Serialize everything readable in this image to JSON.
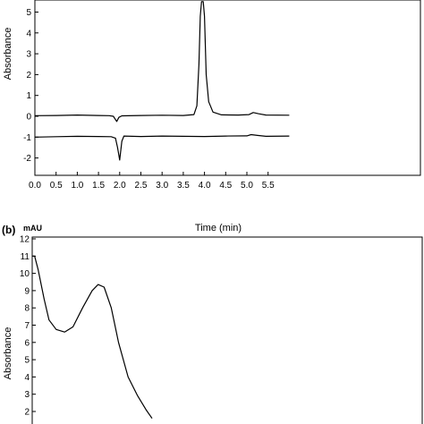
{
  "chart_data": [
    {
      "panel": "",
      "type": "line",
      "xlabel": "Time (min)",
      "ylabel": "Absorbance",
      "xlim": [
        0.0,
        6.0
      ],
      "ylim": [
        -3,
        5.5
      ],
      "x_ticks": [
        "0.0",
        "0.5",
        "1.0",
        "1.5",
        "2.0",
        "2.5",
        "3.0",
        "3.5",
        "4.0",
        "4.5",
        "5.0",
        "5.5"
      ],
      "y_ticks": [
        "-2",
        "-1",
        "0",
        "1",
        "2",
        "3",
        "4",
        "5"
      ],
      "series": [
        {
          "name": "",
          "points": [
            [
              0.0,
              0.03
            ],
            [
              0.5,
              0.04
            ],
            [
              1.0,
              0.06
            ],
            [
              1.5,
              0.04
            ],
            [
              1.75,
              0.03
            ],
            [
              1.85,
              0.0
            ],
            [
              1.93,
              -0.25
            ],
            [
              1.98,
              -0.05
            ],
            [
              2.05,
              0.02
            ],
            [
              2.5,
              0.04
            ],
            [
              3.0,
              0.05
            ],
            [
              3.5,
              0.04
            ],
            [
              3.75,
              0.08
            ],
            [
              3.82,
              0.5
            ],
            [
              3.87,
              2.5
            ],
            [
              3.9,
              4.8
            ],
            [
              3.93,
              5.5
            ],
            [
              3.97,
              5.5
            ],
            [
              4.0,
              4.8
            ],
            [
              4.04,
              2.0
            ],
            [
              4.1,
              0.7
            ],
            [
              4.2,
              0.2
            ],
            [
              4.4,
              0.07
            ],
            [
              4.8,
              0.06
            ],
            [
              5.05,
              0.08
            ],
            [
              5.15,
              0.18
            ],
            [
              5.28,
              0.12
            ],
            [
              5.45,
              0.06
            ],
            [
              6.0,
              0.05
            ]
          ]
        },
        {
          "name": "",
          "points": [
            [
              0.0,
              -1.0
            ],
            [
              0.5,
              -0.98
            ],
            [
              1.0,
              -0.96
            ],
            [
              1.5,
              -0.97
            ],
            [
              1.8,
              -0.98
            ],
            [
              1.9,
              -1.05
            ],
            [
              1.95,
              -1.5
            ],
            [
              2.0,
              -2.1
            ],
            [
              2.05,
              -1.2
            ],
            [
              2.1,
              -0.95
            ],
            [
              2.5,
              -0.97
            ],
            [
              3.0,
              -0.95
            ],
            [
              3.5,
              -0.96
            ],
            [
              4.0,
              -0.97
            ],
            [
              4.5,
              -0.95
            ],
            [
              5.0,
              -0.94
            ],
            [
              5.1,
              -0.88
            ],
            [
              5.25,
              -0.92
            ],
            [
              5.45,
              -0.96
            ],
            [
              6.0,
              -0.95
            ]
          ]
        }
      ]
    },
    {
      "panel": "(b)",
      "type": "line",
      "unit_label": "mAU",
      "ylabel": "Absorbance",
      "ylim": [
        2,
        12
      ],
      "y_ticks": [
        "2",
        "3",
        "4",
        "5",
        "6",
        "7",
        "8",
        "9",
        "10",
        "11",
        "12"
      ],
      "series": [
        {
          "name": "",
          "points": [
            [
              0.0,
              11.0
            ],
            [
              0.02,
              11.0
            ],
            [
              0.05,
              10.2
            ],
            [
              0.1,
              8.5
            ],
            [
              0.14,
              7.3
            ],
            [
              0.2,
              6.75
            ],
            [
              0.27,
              6.6
            ],
            [
              0.34,
              6.9
            ],
            [
              0.42,
              8.0
            ],
            [
              0.5,
              9.0
            ],
            [
              0.55,
              9.35
            ],
            [
              0.6,
              9.2
            ],
            [
              0.66,
              8.0
            ],
            [
              0.72,
              6.0
            ],
            [
              0.8,
              4.0
            ],
            [
              0.88,
              2.9
            ],
            [
              0.95,
              2.1
            ],
            [
              1.0,
              1.6
            ]
          ]
        }
      ]
    }
  ]
}
